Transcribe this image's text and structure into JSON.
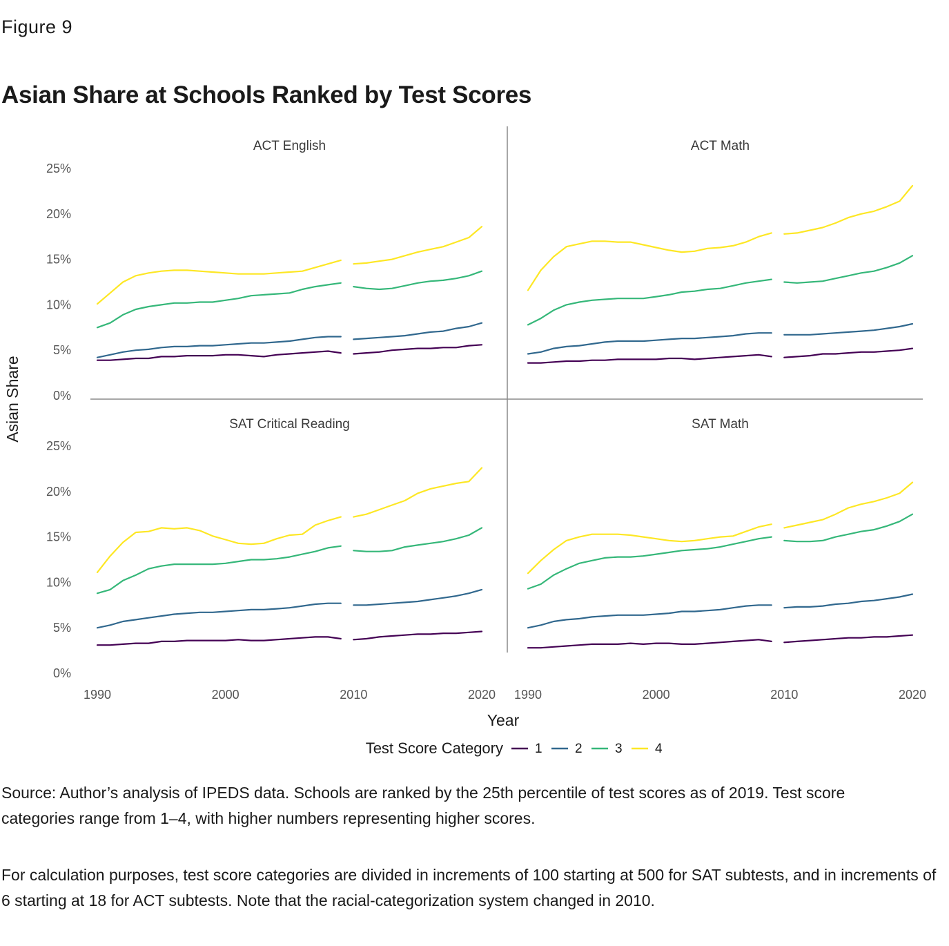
{
  "figure_label": "Figure 9",
  "title": "Asian Share at Schools Ranked by Test Scores",
  "notes": {
    "source": "Source: Author’s analysis of IPEDS data. Schools are ranked by the 25th percentile of test scores as of 2019. Test score categories range from 1–4, with higher numbers representing higher scores.",
    "calculation": "For calculation purposes, test score categories are divided in increments of 100 starting at 500 for SAT subtests, and in increments of 6 starting at 18 for ACT subtests. Note that the racial-categorization system changed in 2010."
  },
  "chart_data": {
    "type": "line",
    "ylabel": "Asian Share",
    "xlabel": "Year",
    "xlim": [
      1990,
      2020
    ],
    "ylim": [
      0,
      25
    ],
    "x_ticks": [
      "1990",
      "2000",
      "2010",
      "2020"
    ],
    "y_ticks": [
      "0%",
      "5%",
      "10%",
      "15%",
      "20%",
      "25%"
    ],
    "legend": {
      "title": "Test Score Category",
      "position": "bottom",
      "entries": [
        {
          "label": "1",
          "color": "#440154"
        },
        {
          "label": "2",
          "color": "#31688e"
        },
        {
          "label": "3",
          "color": "#35b779"
        },
        {
          "label": "4",
          "color": "#fde725"
        }
      ]
    },
    "grid": false,
    "segments": [
      {
        "x": [
          1990,
          1991,
          1992,
          1993,
          1994,
          1995,
          1996,
          1997,
          1998,
          1999,
          2000,
          2001,
          2002,
          2003,
          2004,
          2005,
          2006,
          2007,
          2008,
          2009
        ]
      },
      {
        "x": [
          2010,
          2011,
          2012,
          2013,
          2014,
          2015,
          2016,
          2017,
          2018,
          2019,
          2020
        ]
      }
    ],
    "panels": [
      {
        "title": "ACT English",
        "series": [
          {
            "name": "1",
            "values": [
              [
                3.9,
                3.9,
                4.0,
                4.1,
                4.1,
                4.3,
                4.3,
                4.4,
                4.4,
                4.4,
                4.5,
                4.5,
                4.4,
                4.3,
                4.5,
                4.6,
                4.7,
                4.8,
                4.9,
                4.7
              ],
              [
                4.6,
                4.7,
                4.8,
                5.0,
                5.1,
                5.2,
                5.2,
                5.3,
                5.3,
                5.5,
                5.6
              ]
            ]
          },
          {
            "name": "2",
            "values": [
              [
                4.2,
                4.5,
                4.8,
                5.0,
                5.1,
                5.3,
                5.4,
                5.4,
                5.5,
                5.5,
                5.6,
                5.7,
                5.8,
                5.8,
                5.9,
                6.0,
                6.2,
                6.4,
                6.5,
                6.5
              ],
              [
                6.2,
                6.3,
                6.4,
                6.5,
                6.6,
                6.8,
                7.0,
                7.1,
                7.4,
                7.6,
                8.0
              ]
            ]
          },
          {
            "name": "3",
            "values": [
              [
                7.5,
                8.0,
                8.9,
                9.5,
                9.8,
                10.0,
                10.2,
                10.2,
                10.3,
                10.3,
                10.5,
                10.7,
                11.0,
                11.1,
                11.2,
                11.3,
                11.7,
                12.0,
                12.2,
                12.4
              ],
              [
                12.0,
                11.8,
                11.7,
                11.8,
                12.1,
                12.4,
                12.6,
                12.7,
                12.9,
                13.2,
                13.7
              ]
            ]
          },
          {
            "name": "4",
            "values": [
              [
                10.1,
                11.3,
                12.5,
                13.2,
                13.5,
                13.7,
                13.8,
                13.8,
                13.7,
                13.6,
                13.5,
                13.4,
                13.4,
                13.4,
                13.5,
                13.6,
                13.7,
                14.1,
                14.5,
                14.9
              ],
              [
                14.5,
                14.6,
                14.8,
                15.0,
                15.4,
                15.8,
                16.1,
                16.4,
                16.9,
                17.4,
                18.6
              ]
            ]
          }
        ]
      },
      {
        "title": "ACT Math",
        "series": [
          {
            "name": "1",
            "values": [
              [
                3.6,
                3.6,
                3.7,
                3.8,
                3.8,
                3.9,
                3.9,
                4.0,
                4.0,
                4.0,
                4.0,
                4.1,
                4.1,
                4.0,
                4.1,
                4.2,
                4.3,
                4.4,
                4.5,
                4.3
              ],
              [
                4.2,
                4.3,
                4.4,
                4.6,
                4.6,
                4.7,
                4.8,
                4.8,
                4.9,
                5.0,
                5.2
              ]
            ]
          },
          {
            "name": "2",
            "values": [
              [
                4.6,
                4.8,
                5.2,
                5.4,
                5.5,
                5.7,
                5.9,
                6.0,
                6.0,
                6.0,
                6.1,
                6.2,
                6.3,
                6.3,
                6.4,
                6.5,
                6.6,
                6.8,
                6.9,
                6.9
              ],
              [
                6.7,
                6.7,
                6.7,
                6.8,
                6.9,
                7.0,
                7.1,
                7.2,
                7.4,
                7.6,
                7.9
              ]
            ]
          },
          {
            "name": "3",
            "values": [
              [
                7.8,
                8.5,
                9.4,
                10.0,
                10.3,
                10.5,
                10.6,
                10.7,
                10.7,
                10.7,
                10.9,
                11.1,
                11.4,
                11.5,
                11.7,
                11.8,
                12.1,
                12.4,
                12.6,
                12.8
              ],
              [
                12.5,
                12.4,
                12.5,
                12.6,
                12.9,
                13.2,
                13.5,
                13.7,
                14.1,
                14.6,
                15.4
              ]
            ]
          },
          {
            "name": "4",
            "values": [
              [
                11.6,
                13.8,
                15.3,
                16.4,
                16.7,
                17.0,
                17.0,
                16.9,
                16.9,
                16.6,
                16.3,
                16.0,
                15.8,
                15.9,
                16.2,
                16.3,
                16.5,
                16.9,
                17.5,
                17.9
              ],
              [
                17.8,
                17.9,
                18.2,
                18.5,
                19.0,
                19.6,
                20.0,
                20.3,
                20.8,
                21.4,
                23.1
              ]
            ]
          }
        ]
      },
      {
        "title": "SAT Critical Reading",
        "series": [
          {
            "name": "1",
            "values": [
              [
                3.1,
                3.1,
                3.2,
                3.3,
                3.3,
                3.5,
                3.5,
                3.6,
                3.6,
                3.6,
                3.6,
                3.7,
                3.6,
                3.6,
                3.7,
                3.8,
                3.9,
                4.0,
                4.0,
                3.8
              ],
              [
                3.7,
                3.8,
                4.0,
                4.1,
                4.2,
                4.3,
                4.3,
                4.4,
                4.4,
                4.5,
                4.6
              ]
            ]
          },
          {
            "name": "2",
            "values": [
              [
                5.0,
                5.3,
                5.7,
                5.9,
                6.1,
                6.3,
                6.5,
                6.6,
                6.7,
                6.7,
                6.8,
                6.9,
                7.0,
                7.0,
                7.1,
                7.2,
                7.4,
                7.6,
                7.7,
                7.7
              ],
              [
                7.5,
                7.5,
                7.6,
                7.7,
                7.8,
                7.9,
                8.1,
                8.3,
                8.5,
                8.8,
                9.2
              ]
            ]
          },
          {
            "name": "3",
            "values": [
              [
                8.8,
                9.2,
                10.2,
                10.8,
                11.5,
                11.8,
                12.0,
                12.0,
                12.0,
                12.0,
                12.1,
                12.3,
                12.5,
                12.5,
                12.6,
                12.8,
                13.1,
                13.4,
                13.8,
                14.0
              ],
              [
                13.5,
                13.4,
                13.4,
                13.5,
                13.9,
                14.1,
                14.3,
                14.5,
                14.8,
                15.2,
                16.0
              ]
            ]
          },
          {
            "name": "4",
            "values": [
              [
                11.1,
                12.9,
                14.4,
                15.5,
                15.6,
                16.0,
                15.9,
                16.0,
                15.7,
                15.1,
                14.7,
                14.3,
                14.2,
                14.3,
                14.8,
                15.2,
                15.3,
                16.3,
                16.8,
                17.2
              ],
              [
                17.2,
                17.5,
                18.0,
                18.5,
                19.0,
                19.8,
                20.3,
                20.6,
                20.9,
                21.1,
                22.6
              ]
            ]
          }
        ]
      },
      {
        "title": "SAT Math",
        "series": [
          {
            "name": "1",
            "values": [
              [
                2.8,
                2.8,
                2.9,
                3.0,
                3.1,
                3.2,
                3.2,
                3.2,
                3.3,
                3.2,
                3.3,
                3.3,
                3.2,
                3.2,
                3.3,
                3.4,
                3.5,
                3.6,
                3.7,
                3.5
              ],
              [
                3.4,
                3.5,
                3.6,
                3.7,
                3.8,
                3.9,
                3.9,
                4.0,
                4.0,
                4.1,
                4.2
              ]
            ]
          },
          {
            "name": "2",
            "values": [
              [
                5.0,
                5.3,
                5.7,
                5.9,
                6.0,
                6.2,
                6.3,
                6.4,
                6.4,
                6.4,
                6.5,
                6.6,
                6.8,
                6.8,
                6.9,
                7.0,
                7.2,
                7.4,
                7.5,
                7.5
              ],
              [
                7.2,
                7.3,
                7.3,
                7.4,
                7.6,
                7.7,
                7.9,
                8.0,
                8.2,
                8.4,
                8.7
              ]
            ]
          },
          {
            "name": "3",
            "values": [
              [
                9.3,
                9.8,
                10.8,
                11.5,
                12.1,
                12.4,
                12.7,
                12.8,
                12.8,
                12.9,
                13.1,
                13.3,
                13.5,
                13.6,
                13.7,
                13.9,
                14.2,
                14.5,
                14.8,
                15.0
              ],
              [
                14.6,
                14.5,
                14.5,
                14.6,
                15.0,
                15.3,
                15.6,
                15.8,
                16.2,
                16.7,
                17.5
              ]
            ]
          },
          {
            "name": "4",
            "values": [
              [
                11.0,
                12.4,
                13.6,
                14.6,
                15.0,
                15.3,
                15.3,
                15.3,
                15.2,
                15.0,
                14.8,
                14.6,
                14.5,
                14.6,
                14.8,
                15.0,
                15.1,
                15.6,
                16.1,
                16.4
              ],
              [
                16.0,
                16.3,
                16.6,
                16.9,
                17.5,
                18.2,
                18.6,
                18.9,
                19.3,
                19.8,
                21.0
              ]
            ]
          }
        ]
      }
    ]
  }
}
